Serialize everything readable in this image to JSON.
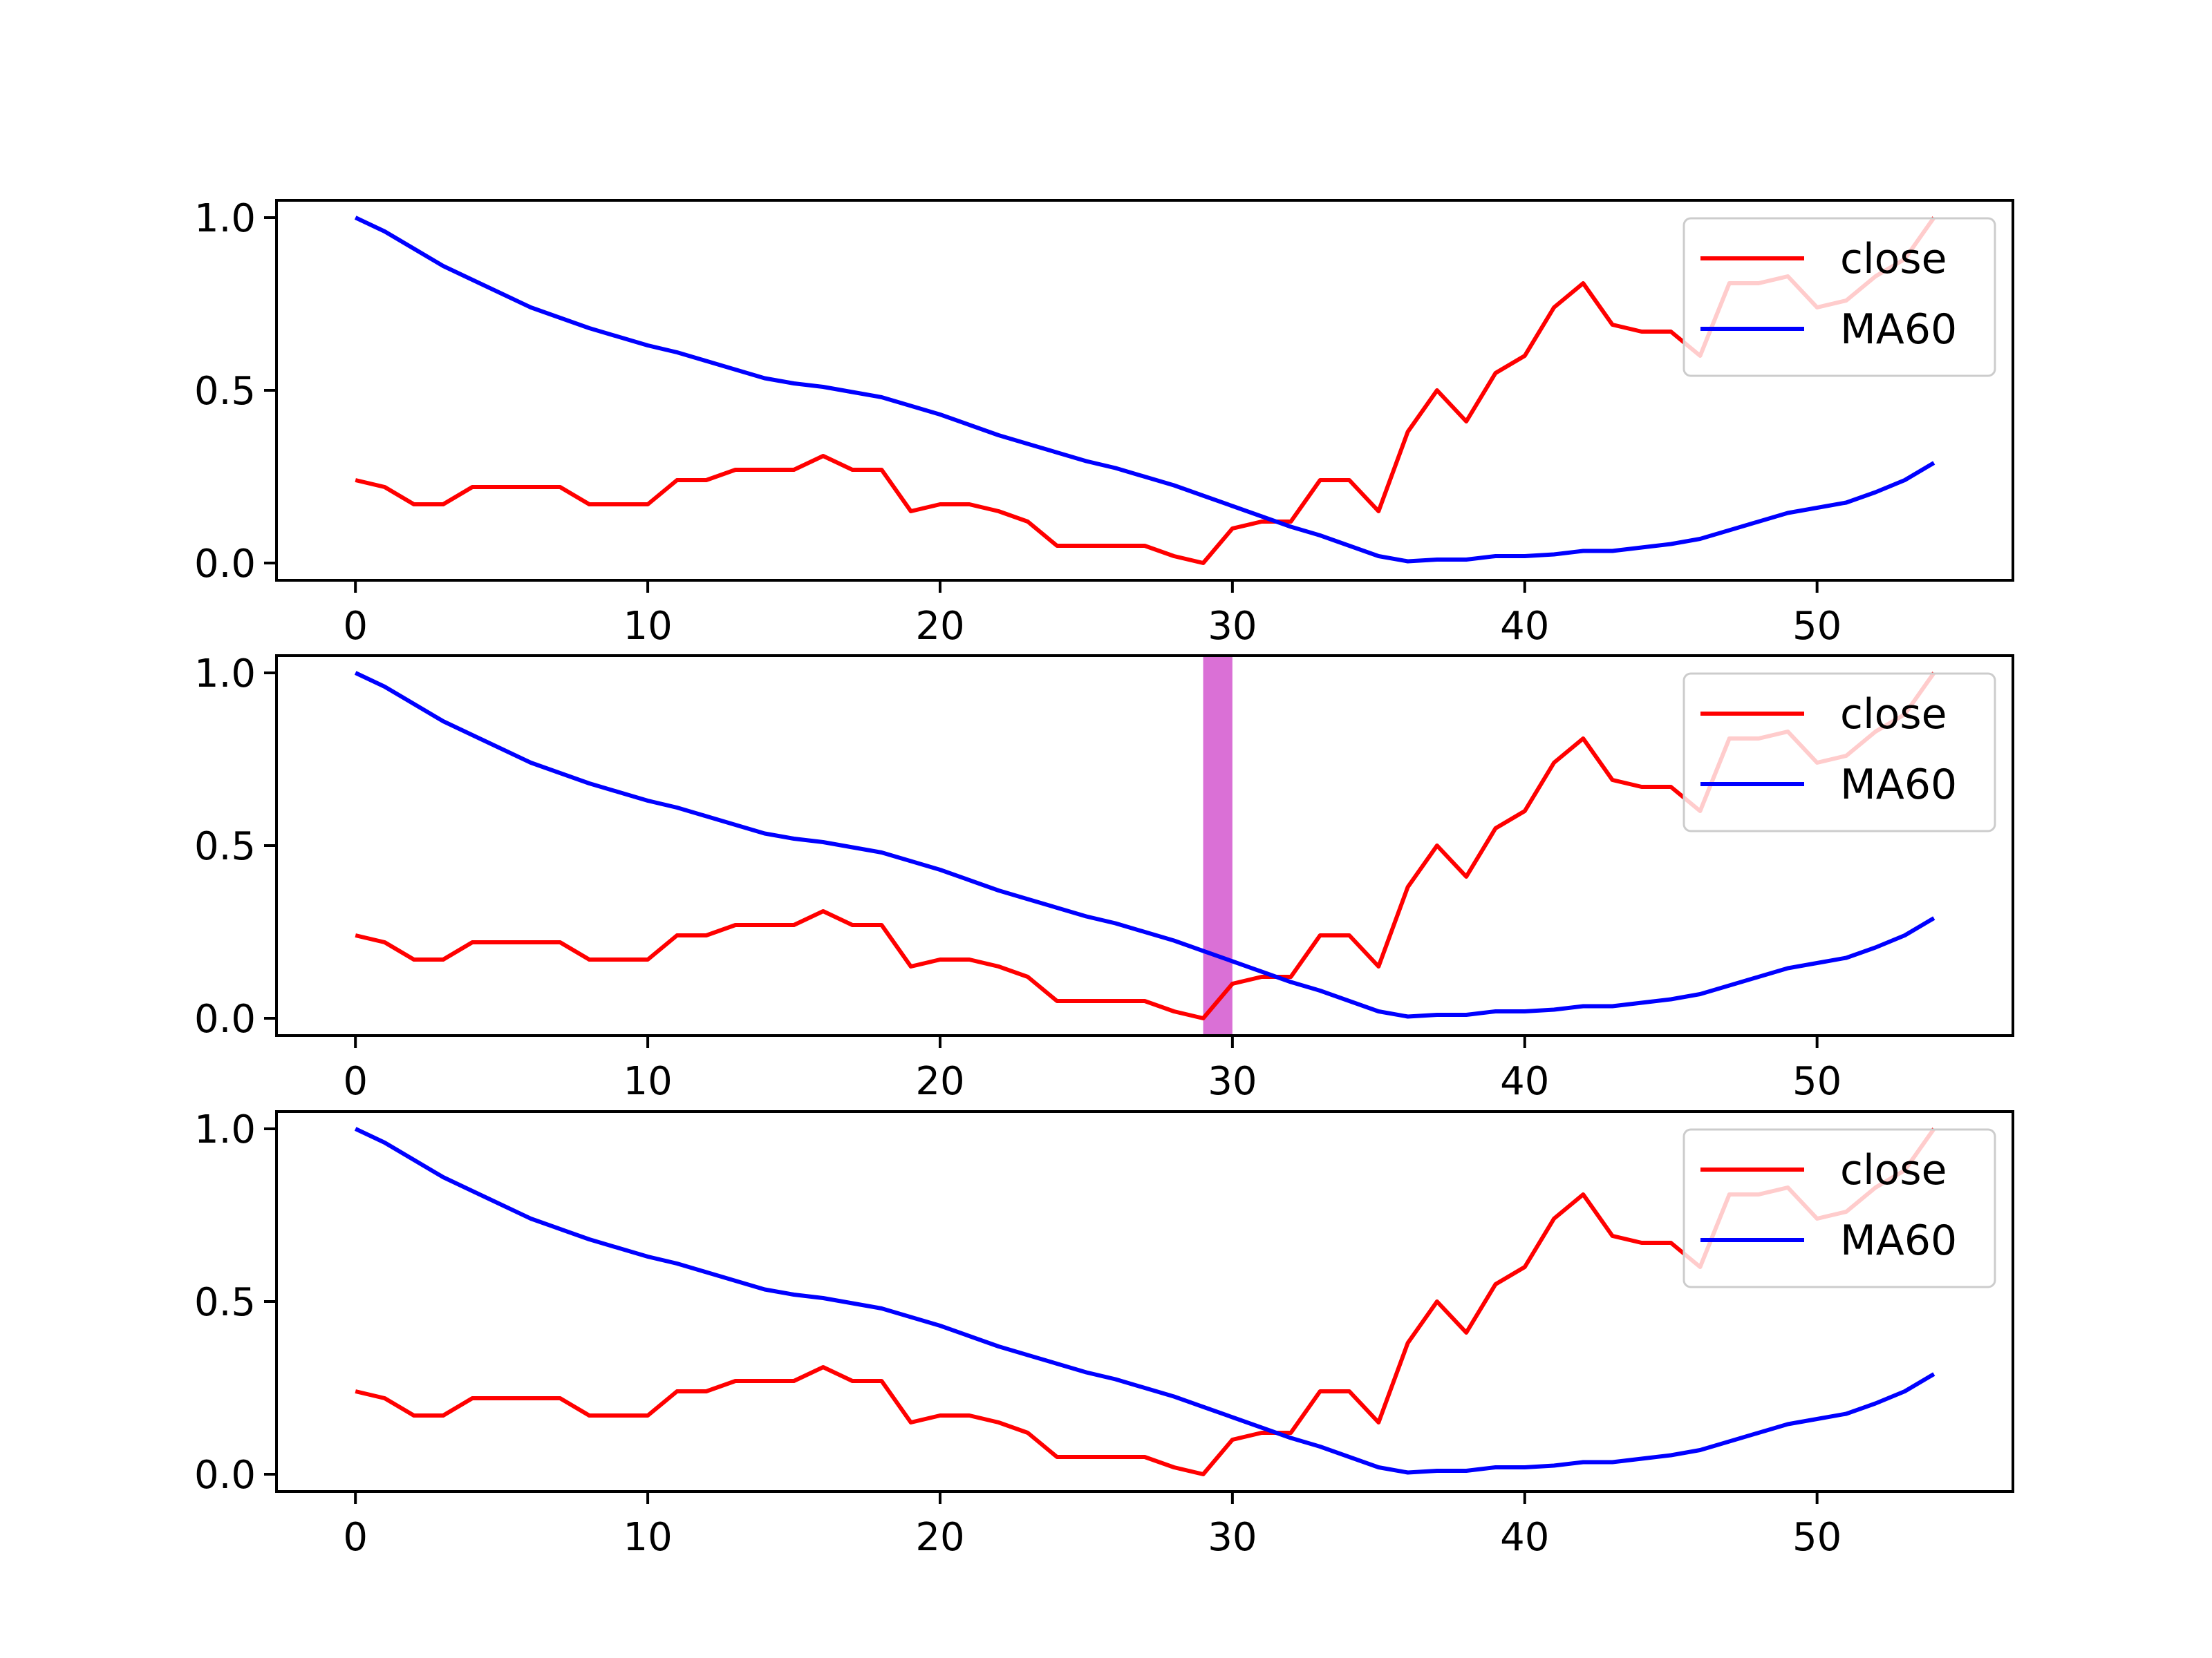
{
  "colors": {
    "close": "#ff0000",
    "ma60": "#0000ff",
    "highlight": "#da70d6",
    "legend_frame": "#cccccc",
    "axes": "#000000"
  },
  "chart_data": [
    {
      "type": "line",
      "panel": "top",
      "xlim": [
        -2.7,
        56.7
      ],
      "ylim": [
        -0.05,
        1.05
      ],
      "x_ticks": [
        0,
        10,
        20,
        30,
        40,
        50
      ],
      "y_ticks": [
        0.0,
        0.5,
        1.0
      ],
      "x_tick_labels": [
        "0",
        "10",
        "20",
        "30",
        "40",
        "50"
      ],
      "y_tick_labels": [
        "0.0",
        "0.5",
        "1.0"
      ],
      "legend_placement": "upper-right",
      "grid": false,
      "series_ref": [
        "close",
        "MA60"
      ]
    },
    {
      "type": "line",
      "panel": "middle",
      "xlim": [
        -2.7,
        56.7
      ],
      "ylim": [
        -0.05,
        1.05
      ],
      "x_ticks": [
        0,
        10,
        20,
        30,
        40,
        50
      ],
      "y_ticks": [
        0.0,
        0.5,
        1.0
      ],
      "x_tick_labels": [
        "0",
        "10",
        "20",
        "30",
        "40",
        "50"
      ],
      "y_tick_labels": [
        "0.0",
        "0.5",
        "1.0"
      ],
      "legend_placement": "upper-right",
      "grid": false,
      "highlight_span": [
        29,
        30
      ],
      "series_ref": [
        "close",
        "MA60"
      ]
    },
    {
      "type": "line",
      "panel": "bottom",
      "xlim": [
        -2.7,
        56.7
      ],
      "ylim": [
        -0.05,
        1.05
      ],
      "x_ticks": [
        0,
        10,
        20,
        30,
        40,
        50
      ],
      "y_ticks": [
        0.0,
        0.5,
        1.0
      ],
      "x_tick_labels": [
        "0",
        "10",
        "20",
        "30",
        "40",
        "50"
      ],
      "y_tick_labels": [
        "0.0",
        "0.5",
        "1.0"
      ],
      "legend_placement": "upper-right",
      "grid": false,
      "series_ref": [
        "close",
        "MA60"
      ]
    }
  ],
  "series": [
    {
      "name": "close",
      "color": "#ff0000",
      "x": [
        0,
        1,
        2,
        3,
        4,
        5,
        6,
        7,
        8,
        9,
        10,
        11,
        12,
        13,
        14,
        15,
        16,
        17,
        18,
        19,
        20,
        21,
        22,
        23,
        24,
        25,
        26,
        27,
        28,
        29,
        30,
        31,
        32,
        33,
        34,
        35,
        36,
        37,
        38,
        39,
        40,
        41,
        42,
        43,
        44,
        45,
        46,
        47,
        48,
        49,
        50,
        51,
        52,
        53,
        54
      ],
      "values": [
        0.24,
        0.22,
        0.17,
        0.17,
        0.22,
        0.22,
        0.22,
        0.22,
        0.17,
        0.17,
        0.17,
        0.24,
        0.24,
        0.27,
        0.27,
        0.27,
        0.31,
        0.27,
        0.27,
        0.15,
        0.17,
        0.17,
        0.15,
        0.12,
        0.05,
        0.05,
        0.05,
        0.05,
        0.02,
        0.0,
        0.1,
        0.12,
        0.12,
        0.24,
        0.24,
        0.15,
        0.38,
        0.5,
        0.41,
        0.55,
        0.6,
        0.74,
        0.81,
        0.69,
        0.67,
        0.67,
        0.6,
        0.81,
        0.81,
        0.83,
        0.74,
        0.76,
        0.83,
        0.88,
        1.0
      ]
    },
    {
      "name": "MA60",
      "color": "#0000ff",
      "x": [
        0,
        1,
        2,
        3,
        4,
        5,
        6,
        7,
        8,
        9,
        10,
        11,
        12,
        13,
        14,
        15,
        16,
        17,
        18,
        19,
        20,
        21,
        22,
        23,
        24,
        25,
        26,
        27,
        28,
        29,
        30,
        31,
        32,
        33,
        34,
        35,
        36,
        37,
        38,
        39,
        40,
        41,
        42,
        43,
        44,
        45,
        46,
        47,
        48,
        49,
        50,
        51,
        52,
        53,
        54
      ],
      "values": [
        1.0,
        0.96,
        0.91,
        0.86,
        0.82,
        0.78,
        0.74,
        0.71,
        0.68,
        0.655,
        0.63,
        0.61,
        0.585,
        0.56,
        0.535,
        0.52,
        0.51,
        0.495,
        0.48,
        0.455,
        0.43,
        0.4,
        0.37,
        0.345,
        0.32,
        0.295,
        0.275,
        0.25,
        0.225,
        0.195,
        0.165,
        0.135,
        0.105,
        0.08,
        0.05,
        0.02,
        0.005,
        0.01,
        0.01,
        0.02,
        0.02,
        0.025,
        0.035,
        0.035,
        0.045,
        0.055,
        0.07,
        0.095,
        0.12,
        0.145,
        0.16,
        0.175,
        0.205,
        0.24,
        0.29
      ]
    }
  ]
}
